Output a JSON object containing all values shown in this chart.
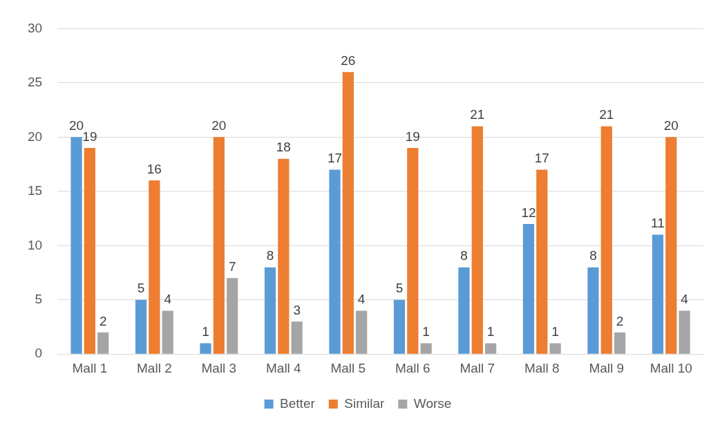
{
  "chart_data": {
    "type": "bar",
    "categories": [
      "Mall 1",
      "Mall 2",
      "Mall 3",
      "Mall 4",
      "Mall 5",
      "Mall 6",
      "Mall 7",
      "Mall 8",
      "Mall 9",
      "Mall 10"
    ],
    "series": [
      {
        "name": "Better",
        "color": "#5b9bd5",
        "values": [
          20,
          5,
          1,
          8,
          17,
          5,
          8,
          12,
          8,
          11
        ]
      },
      {
        "name": "Similar",
        "color": "#ed7d31",
        "values": [
          19,
          16,
          20,
          18,
          26,
          19,
          21,
          17,
          21,
          20
        ]
      },
      {
        "name": "Worse",
        "color": "#a5a5a5",
        "values": [
          2,
          4,
          7,
          3,
          4,
          1,
          1,
          1,
          2,
          4
        ]
      }
    ],
    "ylim": [
      0,
      30
    ],
    "yticks": [
      0,
      5,
      10,
      15,
      20,
      25,
      30
    ],
    "grid": "y",
    "legend": "bottom",
    "data_labels": true
  }
}
